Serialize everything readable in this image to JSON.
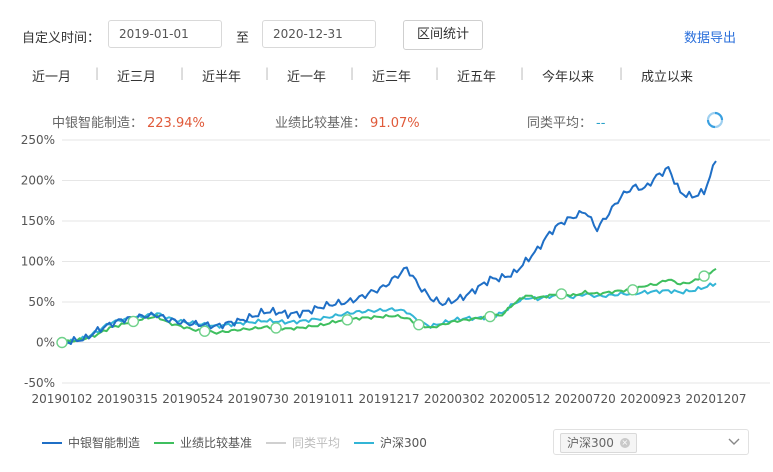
{
  "filter": {
    "custom_time_label": "自定义时间：",
    "start_date": "2019-01-01",
    "to_label": "至",
    "end_date": "2020-12-31",
    "stats_button": "区间统计",
    "export_label": "数据导出"
  },
  "ranges": [
    "近一月",
    "近三月",
    "近半年",
    "近一年",
    "近三年",
    "近五年",
    "今年以来",
    "成立以来"
  ],
  "stats": {
    "fund_label": "中银智能制造：",
    "fund_value": "223.94%",
    "benchmark_label": "业绩比较基准：",
    "benchmark_value": "91.07%",
    "peer_label": "同类平均：",
    "peer_value": "--"
  },
  "chart_data": {
    "type": "line",
    "y_ticks": [
      "250%",
      "200%",
      "150%",
      "100%",
      "50%",
      "0%",
      "-50%"
    ],
    "ylim": [
      -50,
      250
    ],
    "x_ticks": [
      "20190102",
      "20190315",
      "20190524",
      "20190730",
      "20191011",
      "20191217",
      "20200302",
      "20200512",
      "20200720",
      "20200923",
      "20201207"
    ],
    "grid": true,
    "legend_position": "bottom-left",
    "series": [
      {
        "name": "中银智能制造",
        "color": "#1f6fc6",
        "visible": true,
        "values": [
          0,
          2,
          5,
          15,
          22,
          28,
          30,
          33,
          34,
          28,
          25,
          23,
          22,
          20,
          24,
          27,
          32,
          38,
          38,
          35,
          36,
          40,
          45,
          48,
          50,
          55,
          62,
          68,
          80,
          92,
          70,
          55,
          48,
          52,
          58,
          68,
          78,
          80,
          85,
          100,
          115,
          135,
          148,
          155,
          162,
          140,
          160,
          180,
          192,
          190,
          205,
          215,
          185,
          180,
          186,
          224
        ]
      },
      {
        "name": "业绩比较基准",
        "color": "#3fbf5f",
        "visible": true,
        "values": [
          0,
          2,
          5,
          10,
          18,
          22,
          26,
          30,
          32,
          24,
          20,
          16,
          14,
          12,
          14,
          16,
          17,
          19,
          18,
          17,
          18,
          20,
          22,
          26,
          28,
          30,
          31,
          32,
          33,
          30,
          22,
          18,
          22,
          26,
          28,
          30,
          32,
          34,
          48,
          58,
          55,
          58,
          60,
          58,
          62,
          60,
          62,
          64,
          65,
          70,
          72,
          78,
          72,
          75,
          82,
          91
        ]
      },
      {
        "name": "同类平均",
        "color": "#c8c8c8",
        "visible": false,
        "values": []
      },
      {
        "name": "沪深300",
        "color": "#33b5d6",
        "visible": true,
        "values": [
          0,
          2,
          6,
          14,
          24,
          28,
          30,
          33,
          36,
          30,
          26,
          24,
          22,
          20,
          22,
          24,
          25,
          27,
          26,
          25,
          26,
          28,
          30,
          33,
          36,
          38,
          39,
          40,
          41,
          38,
          26,
          20,
          24,
          28,
          30,
          30,
          32,
          36,
          48,
          55,
          54,
          57,
          58,
          56,
          60,
          57,
          58,
          60,
          60,
          62,
          63,
          64,
          62,
          64,
          68,
          73
        ]
      }
    ],
    "markers": {
      "benchmark_indices": [
        0,
        6,
        12,
        18,
        24,
        30,
        36,
        42,
        48,
        54
      ]
    }
  },
  "legend": {
    "items": [
      "中银智能制造",
      "业绩比较基准",
      "同类平均",
      "沪深300"
    ]
  },
  "compare_select": {
    "tag": "沪深300"
  }
}
